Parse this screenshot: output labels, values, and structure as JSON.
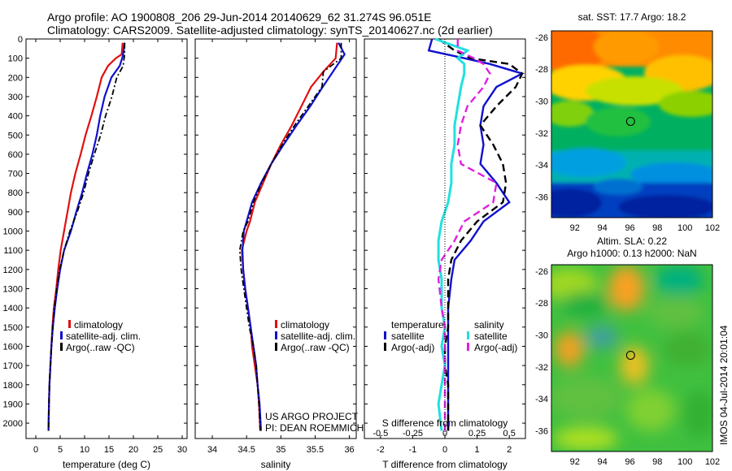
{
  "header": {
    "line1": "Argo profile: AO 1900808_206 29-Jun-2014 20140629_62 31.274S 96.051E",
    "line2": "Climatology: CARS2009. Satellite-adjusted climatology: synTS_20140627.nc (2d earlier)"
  },
  "colors": {
    "climatology": "#e01010",
    "satellite": "#1010d0",
    "argo": "#000000",
    "sal_satellite": "#20e0e0",
    "sal_argo": "#e020e0"
  },
  "chart_data": [
    {
      "type": "line",
      "id": "temperature",
      "xlabel": "temperature (deg C)",
      "ylabel": "",
      "xlim": [
        -2,
        31
      ],
      "ylim": [
        2080,
        0
      ],
      "xticks": [
        0,
        5,
        10,
        15,
        20,
        25,
        30
      ],
      "yticks": [
        0,
        100,
        200,
        300,
        400,
        500,
        600,
        700,
        800,
        900,
        1000,
        1100,
        1200,
        1300,
        1400,
        1500,
        1600,
        1700,
        1800,
        1900,
        2000
      ],
      "legend": [
        "climatology",
        "satellite-adj. clim.",
        "Argo(..raw -QC)"
      ],
      "series": [
        {
          "name": "climatology",
          "x": [
            17.8,
            17.6,
            16.4,
            14.8,
            13.5,
            12.5,
            11.4,
            10.2,
            9.2,
            8.1,
            7.2,
            6.5,
            5.8,
            5.1,
            4.6,
            4.2,
            3.7,
            3.4,
            3.2,
            3.0,
            2.8,
            2.7,
            2.6
          ],
          "y": [
            20,
            80,
            100,
            140,
            200,
            300,
            400,
            500,
            600,
            700,
            800,
            900,
            1000,
            1100,
            1200,
            1300,
            1400,
            1500,
            1600,
            1700,
            1800,
            1900,
            2040
          ]
        },
        {
          "name": "satellite-adj. clim.",
          "x": [
            18.2,
            17.9,
            17.7,
            17.2,
            15.5,
            14.1,
            13.2,
            12.5,
            11.6,
            10.5,
            9.5,
            8.3,
            7.2,
            5.8,
            5.0,
            4.4,
            3.9,
            3.5,
            3.2,
            3.0,
            2.8,
            2.7,
            2.6
          ],
          "y": [
            20,
            80,
            100,
            140,
            200,
            300,
            400,
            500,
            600,
            700,
            800,
            900,
            1000,
            1100,
            1200,
            1300,
            1400,
            1500,
            1600,
            1700,
            1800,
            1900,
            2040
          ]
        },
        {
          "name": "Argo(..raw -QC)",
          "x": [
            18.2,
            18.2,
            18.1,
            17.9,
            16.6,
            15.6,
            14.3,
            13.3,
            12.0,
            10.8,
            9.8,
            8.5,
            7.0,
            5.8,
            4.9,
            4.3,
            3.8,
            3.5,
            3.2,
            3.0,
            2.8,
            2.7,
            2.6
          ],
          "y": [
            20,
            80,
            100,
            140,
            200,
            300,
            400,
            500,
            600,
            700,
            800,
            900,
            1000,
            1100,
            1200,
            1300,
            1400,
            1500,
            1600,
            1700,
            1800,
            1900,
            2040
          ]
        }
      ]
    },
    {
      "type": "line",
      "id": "salinity",
      "xlabel": "salinity",
      "ylabel": "",
      "xlim": [
        33.75,
        36.1
      ],
      "ylim": [
        2080,
        0
      ],
      "xticks": [
        34,
        34.5,
        35,
        35.5,
        36
      ],
      "legend": [
        "climatology",
        "satellite-adj. clim.",
        "Argo(..raw -QC)"
      ],
      "series": [
        {
          "name": "climatology",
          "x": [
            35.82,
            35.8,
            35.62,
            35.44,
            35.3,
            35.16,
            35.0,
            34.86,
            34.74,
            34.62,
            34.55,
            34.5,
            34.43,
            34.45,
            34.48,
            34.52,
            34.56,
            34.58,
            34.62,
            34.66,
            34.68,
            34.7
          ],
          "y": [
            20,
            100,
            170,
            250,
            350,
            450,
            550,
            650,
            750,
            850,
            950,
            1000,
            1100,
            1200,
            1300,
            1400,
            1500,
            1600,
            1700,
            1800,
            1900,
            2040
          ]
        },
        {
          "name": "satellite-adj. clim.",
          "x": [
            35.84,
            35.93,
            35.76,
            35.61,
            35.43,
            35.23,
            35.04,
            34.86,
            34.71,
            34.58,
            34.5,
            34.46,
            34.44,
            34.45,
            34.48,
            34.52,
            34.56,
            34.6,
            34.64,
            34.66,
            34.69,
            34.71
          ],
          "y": [
            20,
            80,
            170,
            250,
            350,
            450,
            550,
            650,
            750,
            850,
            950,
            1000,
            1100,
            1200,
            1300,
            1400,
            1500,
            1600,
            1700,
            1800,
            1900,
            2040
          ]
        },
        {
          "name": "Argo(..raw -QC)",
          "x": [
            35.88,
            35.88,
            35.62,
            35.6,
            35.4,
            35.2,
            35.02,
            34.86,
            34.72,
            34.6,
            34.52,
            34.45,
            34.4,
            34.42,
            34.46,
            34.5,
            34.54,
            34.6,
            34.64,
            34.66,
            34.68,
            34.7
          ],
          "y": [
            20,
            100,
            170,
            250,
            350,
            450,
            550,
            650,
            750,
            850,
            950,
            1000,
            1100,
            1200,
            1300,
            1400,
            1500,
            1600,
            1700,
            1800,
            1900,
            2040
          ]
        }
      ]
    },
    {
      "type": "line",
      "id": "difference",
      "xlabel": "T difference from climatology",
      "xlabel_top": "S difference from climatology",
      "xlim": [
        -2.5,
        2.5
      ],
      "ylim": [
        2080,
        0
      ],
      "xticks_T": [
        -2,
        -1,
        0,
        1,
        2
      ],
      "xticks_S": [
        "-0.5",
        "-0.25",
        "0",
        "0.25",
        "0.5"
      ],
      "legend_temperature_title": "temperature",
      "legend_salinity_title": "salinity",
      "legend": [
        "satellite",
        "Argo(-adj)",
        "satellite",
        "Argo(-adj)"
      ],
      "series": [
        {
          "name": "satellite",
          "quantity": "temperature",
          "x": [
            -0.4,
            -0.5,
            0.6,
            1.4,
            2.4,
            1.6,
            1.2,
            1.1,
            1.2,
            1.1,
            1.6,
            2.0,
            1.2,
            0.8,
            0.3,
            0.2,
            0.1,
            0.1,
            0.1,
            0.1,
            0.1,
            0.1,
            0.1
          ],
          "y": [
            0,
            60,
            100,
            130,
            180,
            250,
            350,
            450,
            550,
            650,
            750,
            850,
            950,
            1050,
            1150,
            1250,
            1400,
            1500,
            1600,
            1700,
            1800,
            1900,
            2040
          ]
        },
        {
          "name": "Argo(-adj)",
          "quantity": "temperature",
          "x": [
            -0.2,
            0.3,
            0.8,
            2.0,
            2.4,
            2.2,
            1.6,
            1.1,
            1.5,
            1.8,
            1.9,
            1.8,
            1.0,
            0.5,
            0.2,
            0.1,
            0.1,
            0.1,
            0.0,
            0.0,
            0.1,
            0.1,
            0.1
          ],
          "y": [
            0,
            60,
            100,
            130,
            180,
            250,
            350,
            450,
            550,
            650,
            750,
            850,
            950,
            1050,
            1150,
            1250,
            1400,
            1500,
            1600,
            1700,
            1800,
            1900,
            2040
          ]
        },
        {
          "name": "satellite",
          "quantity": "salinity",
          "x": [
            -0.3,
            0.7,
            0.4,
            0.6,
            0.6,
            0.5,
            0.4,
            0.3,
            0.3,
            0.2,
            0.2,
            0.1,
            -0.1,
            -0.2,
            -0.2,
            -0.1,
            -0.1,
            0.0,
            -0.1,
            0.0,
            -0.1,
            -0.2,
            -0.1
          ],
          "y": [
            0,
            60,
            100,
            130,
            180,
            250,
            350,
            450,
            550,
            650,
            750,
            850,
            950,
            1050,
            1150,
            1250,
            1400,
            1500,
            1600,
            1700,
            1800,
            1900,
            2040
          ]
        },
        {
          "name": "Argo(-adj)",
          "quantity": "salinity",
          "x": [
            0.4,
            0.4,
            0.9,
            1.2,
            1.4,
            1.2,
            0.7,
            0.5,
            0.4,
            0.5,
            1.6,
            1.5,
            0.6,
            0.3,
            -0.1,
            -0.2,
            -0.1,
            0.0,
            0.0,
            0.0,
            0.0,
            0.0,
            0.0
          ],
          "y": [
            0,
            60,
            100,
            130,
            180,
            250,
            350,
            450,
            550,
            650,
            750,
            850,
            950,
            1050,
            1150,
            1250,
            1400,
            1500,
            1600,
            1700,
            1800,
            1900,
            2040
          ]
        }
      ]
    },
    {
      "type": "heatmap",
      "id": "sst_map",
      "title": "sat. SST: 17.7  Argo: 18.2",
      "xticks": [
        92,
        94,
        96,
        98,
        100,
        102
      ],
      "yticks": [
        -26,
        -28,
        -30,
        -32,
        -34,
        -36
      ],
      "xlim": [
        90.3,
        102
      ],
      "ylim": [
        -37.3,
        -25.6
      ],
      "marker": {
        "lon": 96.05,
        "lat": -31.27
      }
    },
    {
      "type": "heatmap",
      "id": "sla_map",
      "title": "Altim. SLA: 0.22",
      "subtitle": "Argo h1000: 0.13 h2000: NaN",
      "xticks": [
        92,
        94,
        96,
        98,
        100,
        102
      ],
      "yticks": [
        -26,
        -28,
        -30,
        -32,
        -34,
        -36
      ],
      "xlim": [
        90.3,
        102
      ],
      "ylim": [
        -37.3,
        -25.6
      ],
      "marker": {
        "lon": 96.05,
        "lat": -31.27
      }
    }
  ],
  "credits": {
    "project": "US ARGO PROJECT",
    "pi": "PI: DEAN ROEMMICH"
  },
  "stamp": "IMOS 04-Jul-2014 20:01:04"
}
